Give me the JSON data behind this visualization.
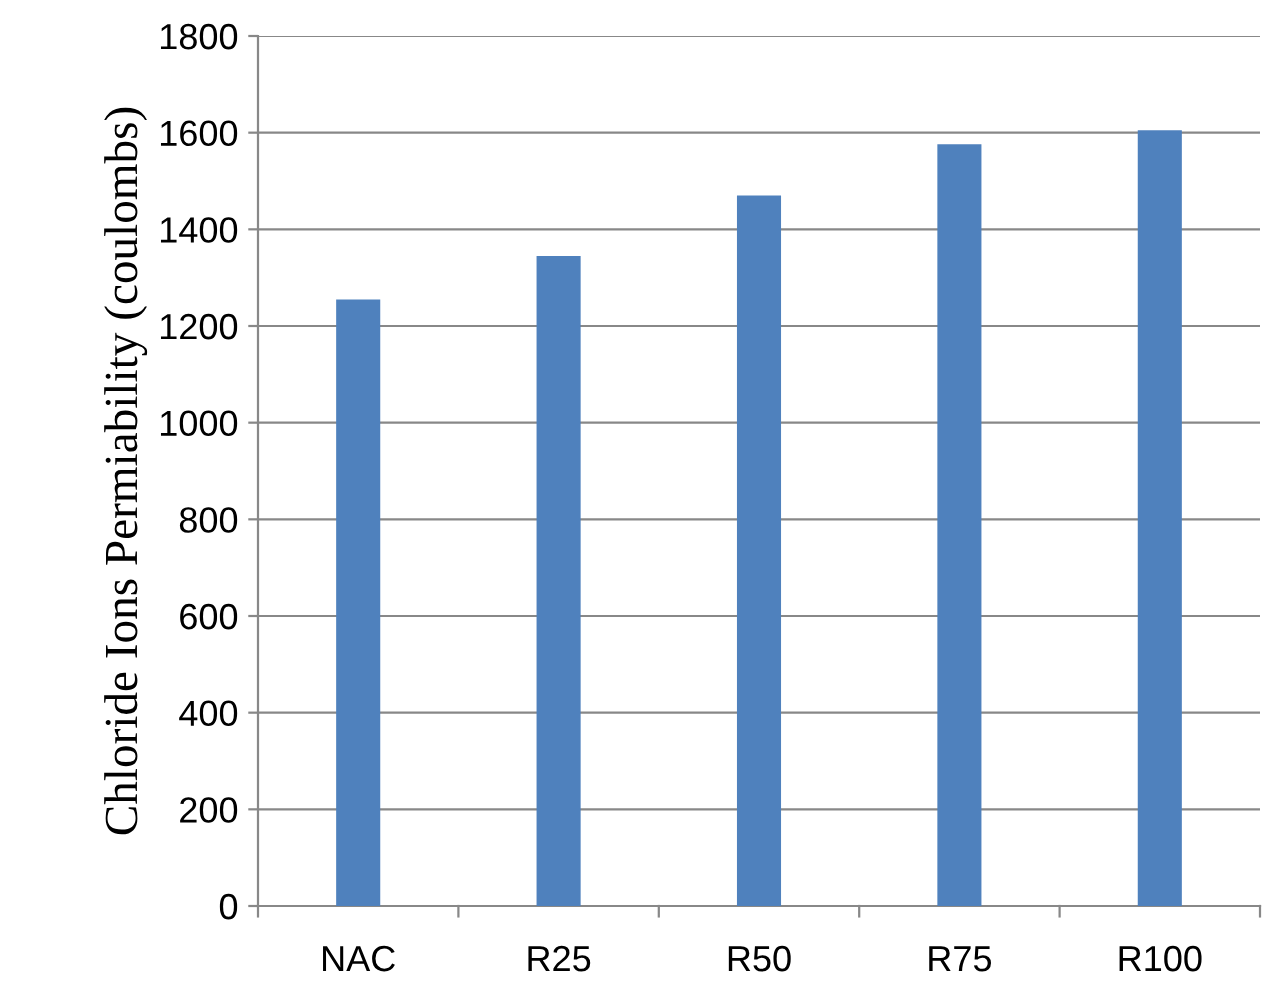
{
  "chart_data": {
    "type": "bar",
    "ylabel": "Chloride Ions Permiability (coulombs)",
    "categories": [
      "NAC",
      "R25",
      "R50",
      "R75",
      "R100"
    ],
    "values": [
      1255,
      1345,
      1470,
      1576,
      1605
    ],
    "color": "#4f81bd",
    "ylim": [
      0,
      1800
    ],
    "yticks": [
      0,
      200,
      400,
      600,
      800,
      1000,
      1200,
      1400,
      1600,
      1800
    ],
    "grid": "y",
    "legend": false
  }
}
